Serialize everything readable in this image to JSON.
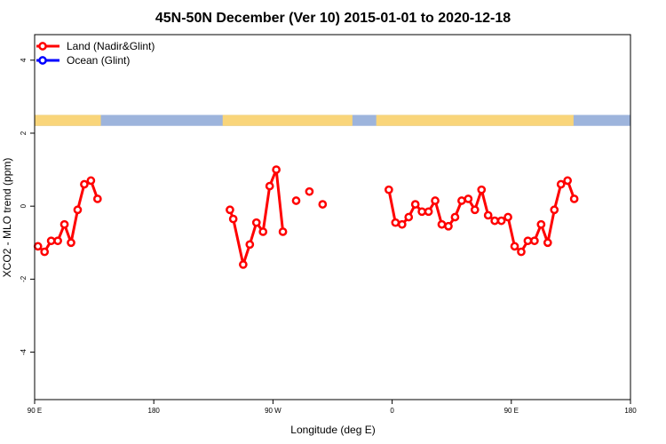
{
  "chart_data": {
    "type": "line",
    "title": "45N-50N December (Ver 10)   2015-01-01 to 2020-12-18",
    "xlabel": "Longitude (deg E)",
    "ylabel": "XCO2 - MLO trend (ppm)",
    "xlim": [
      90,
      540
    ],
    "ylim": [
      -5.3,
      4.7
    ],
    "x_ticks": [
      {
        "value": 90,
        "label": "90 E"
      },
      {
        "value": 180,
        "label": "180"
      },
      {
        "value": 270,
        "label": "90 W"
      },
      {
        "value": 360,
        "label": "0"
      },
      {
        "value": 450,
        "label": "90 E"
      },
      {
        "value": 540,
        "label": "180"
      }
    ],
    "y_ticks": [
      {
        "value": 4,
        "label": "4"
      },
      {
        "value": 2,
        "label": "2"
      },
      {
        "value": 0,
        "label": "0"
      },
      {
        "value": -2,
        "label": "-2"
      },
      {
        "value": -4,
        "label": "-4"
      }
    ],
    "legend": {
      "position": "top-left",
      "entries": [
        {
          "label": "Land (Nadir&Glint)",
          "color": "#ff0000"
        },
        {
          "label": "Ocean (Glint)",
          "color": "#0000ff"
        }
      ]
    },
    "land_ocean_band": {
      "ocean_color": "#9db4dc",
      "land_color": "#f9d57a",
      "y_range": [
        2.2,
        2.5
      ],
      "land_spans": [
        [
          90,
          140
        ],
        [
          232,
          330
        ],
        [
          348,
          497
        ]
      ]
    },
    "series": [
      {
        "name": "Land (Nadir&Glint)",
        "color": "#ff0000",
        "segments": [
          [
            [
              92.5,
              -1.1
            ],
            [
              97.5,
              -1.25
            ],
            [
              102.5,
              -0.95
            ],
            [
              107.5,
              -0.95
            ],
            [
              112.5,
              -0.5
            ],
            [
              117.5,
              -1.0
            ],
            [
              122.5,
              -0.1
            ],
            [
              127.5,
              0.6
            ],
            [
              132.5,
              0.7
            ],
            [
              137.5,
              0.2
            ]
          ],
          [
            [
              237.5,
              -0.1
            ],
            [
              240,
              -0.35
            ],
            [
              247.5,
              -1.6
            ],
            [
              252.5,
              -1.05
            ],
            [
              257.5,
              -0.45
            ],
            [
              262.5,
              -0.7
            ],
            [
              267.5,
              0.55
            ],
            [
              272.5,
              1.0
            ],
            [
              277.5,
              -0.7
            ]
          ],
          [
            [
              287.5,
              0.15
            ]
          ],
          [
            [
              297.5,
              0.4
            ]
          ],
          [
            [
              307.5,
              0.05
            ]
          ],
          [
            [
              357.5,
              0.45
            ],
            [
              362.5,
              -0.45
            ],
            [
              367.5,
              -0.5
            ],
            [
              372.5,
              -0.3
            ],
            [
              377.5,
              0.05
            ],
            [
              382.5,
              -0.15
            ],
            [
              387.5,
              -0.15
            ],
            [
              392.5,
              0.15
            ],
            [
              397.5,
              -0.5
            ],
            [
              402.5,
              -0.55
            ],
            [
              407.5,
              -0.3
            ],
            [
              412.5,
              0.15
            ],
            [
              417.5,
              0.2
            ],
            [
              422.5,
              -0.1
            ],
            [
              427.5,
              0.45
            ],
            [
              432.5,
              -0.25
            ],
            [
              437.5,
              -0.4
            ],
            [
              442.5,
              -0.4
            ],
            [
              447.5,
              -0.3
            ],
            [
              452.5,
              -1.1
            ],
            [
              457.5,
              -1.25
            ],
            [
              462.5,
              -0.95
            ],
            [
              467.5,
              -0.95
            ],
            [
              472.5,
              -0.5
            ],
            [
              477.5,
              -1.0
            ],
            [
              482.5,
              -0.1
            ],
            [
              487.5,
              0.6
            ],
            [
              492.5,
              0.7
            ],
            [
              497.5,
              0.2
            ]
          ]
        ]
      }
    ]
  }
}
